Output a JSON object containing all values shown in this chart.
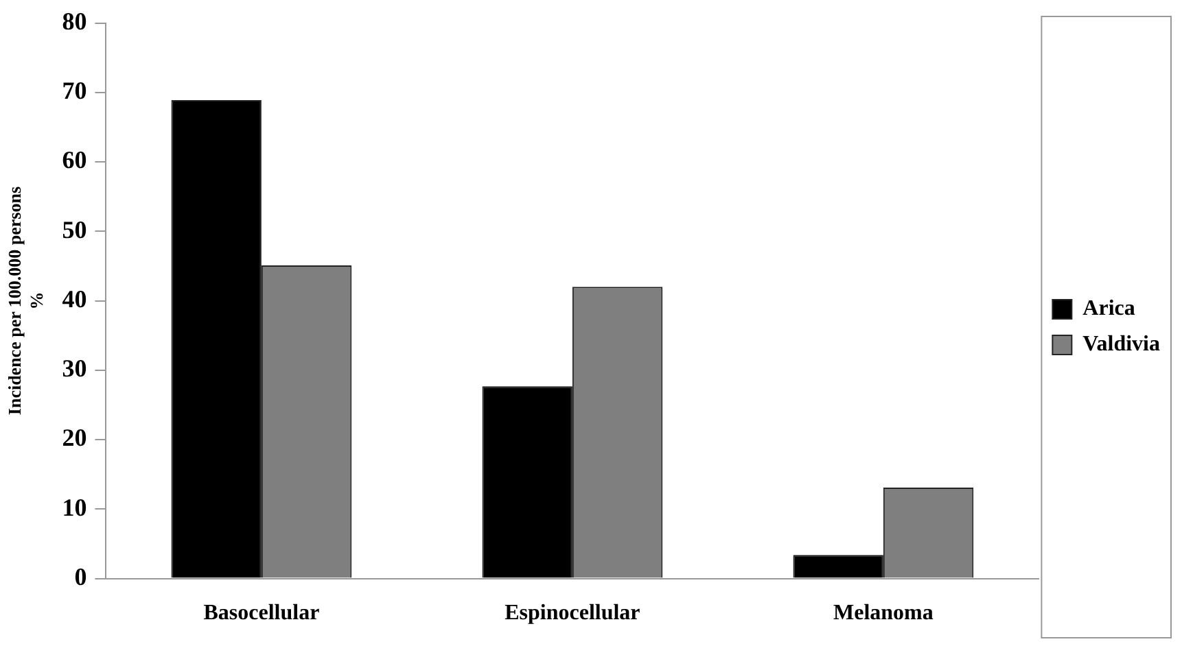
{
  "chart_data": {
    "type": "bar",
    "ylabel": "Incidence per 100.000 persons\n%",
    "categories": [
      "Basocellular",
      "Espinocellular",
      "Melanoma"
    ],
    "series": [
      {
        "name": "Arica",
        "color": "#000000",
        "values": [
          68.9,
          27.7,
          3.4
        ]
      },
      {
        "name": "Valdivia",
        "color": "#7f7f7f",
        "values": [
          45.1,
          42.0,
          13.1
        ]
      }
    ],
    "ylim": [
      0,
      80
    ],
    "yticks": [
      0,
      10,
      20,
      30,
      40,
      50,
      60,
      70,
      80
    ],
    "grid": false,
    "legend": "right"
  }
}
